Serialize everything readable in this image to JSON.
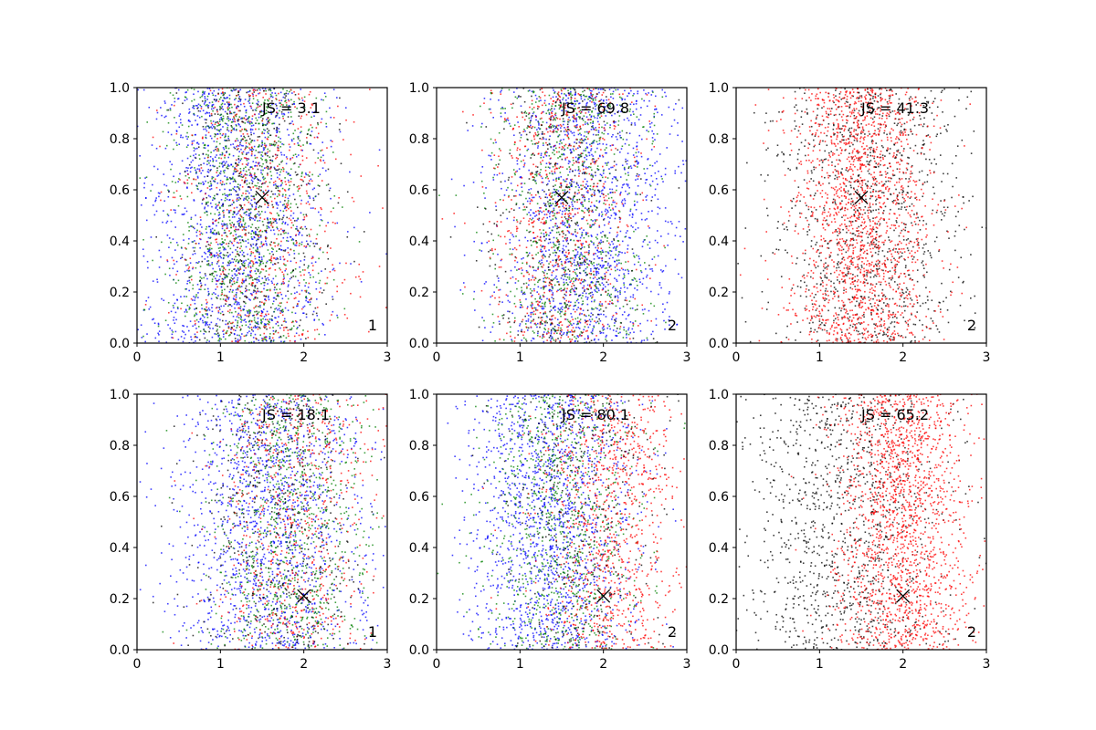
{
  "chart_data": [
    {
      "type": "scatter",
      "xlim": [
        0,
        3
      ],
      "ylim": [
        0,
        1
      ],
      "xticks": [
        "0",
        "1",
        "2",
        "3"
      ],
      "yticks": [
        "0.0",
        "0.2",
        "0.4",
        "0.6",
        "0.8",
        "1.0"
      ],
      "annotation": "JS = 3.1",
      "corner_label": "1",
      "marker": {
        "x": 1.5,
        "y": 0.57,
        "symbol": "x"
      },
      "series": [
        {
          "color": "#0000ff",
          "count": 1500,
          "x_center": 1.2,
          "x_spread": 0.55
        },
        {
          "color": "#008000",
          "count": 1000,
          "x_center": 1.3,
          "x_spread": 0.45
        },
        {
          "color": "#ff0000",
          "count": 650,
          "x_center": 1.5,
          "x_spread": 0.5
        },
        {
          "color": "#000000",
          "count": 400,
          "x_center": 1.4,
          "x_spread": 0.45
        }
      ],
      "grid": false
    },
    {
      "type": "scatter",
      "xlim": [
        0,
        3
      ],
      "ylim": [
        0,
        1
      ],
      "xticks": [
        "0",
        "1",
        "2",
        "3"
      ],
      "yticks": [
        "0.0",
        "0.2",
        "0.4",
        "0.6",
        "0.8",
        "1.0"
      ],
      "annotation": "JS = 69.8",
      "corner_label": "2",
      "marker": {
        "x": 1.5,
        "y": 0.57,
        "symbol": "x"
      },
      "series": [
        {
          "color": "#0000ff",
          "count": 1500,
          "x_center": 1.8,
          "x_spread": 0.55
        },
        {
          "color": "#008000",
          "count": 850,
          "x_center": 1.6,
          "x_spread": 0.45
        },
        {
          "color": "#ff0000",
          "count": 750,
          "x_center": 1.5,
          "x_spread": 0.45
        },
        {
          "color": "#000000",
          "count": 350,
          "x_center": 1.5,
          "x_spread": 0.45
        }
      ],
      "grid": false
    },
    {
      "type": "scatter",
      "xlim": [
        0,
        3
      ],
      "ylim": [
        0,
        1
      ],
      "xticks": [
        "0",
        "1",
        "2",
        "3"
      ],
      "yticks": [
        "0.0",
        "0.2",
        "0.4",
        "0.6",
        "0.8",
        "1.0"
      ],
      "annotation": "JS = 41.3",
      "corner_label": "2",
      "marker": {
        "x": 1.5,
        "y": 0.57,
        "symbol": "x"
      },
      "series": [
        {
          "color": "#000000",
          "count": 1100,
          "x_center": 1.6,
          "x_spread": 0.6
        },
        {
          "color": "#ff0000",
          "count": 1700,
          "x_center": 1.5,
          "x_spread": 0.42
        }
      ],
      "grid": false
    },
    {
      "type": "scatter",
      "xlim": [
        0,
        3
      ],
      "ylim": [
        0,
        1
      ],
      "xticks": [
        "0",
        "1",
        "2",
        "3"
      ],
      "yticks": [
        "0.0",
        "0.2",
        "0.4",
        "0.6",
        "0.8",
        "1.0"
      ],
      "annotation": "JS = 18.1",
      "corner_label": "1",
      "marker": {
        "x": 2.0,
        "y": 0.21,
        "symbol": "x"
      },
      "series": [
        {
          "color": "#0000ff",
          "count": 1450,
          "x_center": 1.6,
          "x_spread": 0.6
        },
        {
          "color": "#008000",
          "count": 900,
          "x_center": 1.8,
          "x_spread": 0.5
        },
        {
          "color": "#ff0000",
          "count": 650,
          "x_center": 1.9,
          "x_spread": 0.5
        },
        {
          "color": "#000000",
          "count": 400,
          "x_center": 1.7,
          "x_spread": 0.5
        }
      ],
      "grid": false
    },
    {
      "type": "scatter",
      "xlim": [
        0,
        3
      ],
      "ylim": [
        0,
        1
      ],
      "xticks": [
        "0",
        "1",
        "2",
        "3"
      ],
      "yticks": [
        "0.0",
        "0.2",
        "0.4",
        "0.6",
        "0.8",
        "1.0"
      ],
      "annotation": "JS = 80.1",
      "corner_label": "2",
      "marker": {
        "x": 2.0,
        "y": 0.21,
        "symbol": "x"
      },
      "series": [
        {
          "color": "#0000ff",
          "count": 1500,
          "x_center": 1.4,
          "x_spread": 0.5
        },
        {
          "color": "#008000",
          "count": 900,
          "x_center": 1.5,
          "x_spread": 0.45
        },
        {
          "color": "#ff0000",
          "count": 950,
          "x_center": 2.1,
          "x_spread": 0.4
        },
        {
          "color": "#000000",
          "count": 300,
          "x_center": 1.7,
          "x_spread": 0.5
        }
      ],
      "grid": false
    },
    {
      "type": "scatter",
      "xlim": [
        0,
        3
      ],
      "ylim": [
        0,
        1
      ],
      "xticks": [
        "0",
        "1",
        "2",
        "3"
      ],
      "yticks": [
        "0.0",
        "0.2",
        "0.4",
        "0.6",
        "0.8",
        "1.0"
      ],
      "annotation": "JS = 65.2",
      "corner_label": "2",
      "marker": {
        "x": 2.0,
        "y": 0.21,
        "symbol": "x"
      },
      "series": [
        {
          "color": "#000000",
          "count": 1100,
          "x_center": 1.3,
          "x_spread": 0.6
        },
        {
          "color": "#ff0000",
          "count": 1700,
          "x_center": 2.0,
          "x_spread": 0.4
        }
      ],
      "grid": false
    }
  ]
}
